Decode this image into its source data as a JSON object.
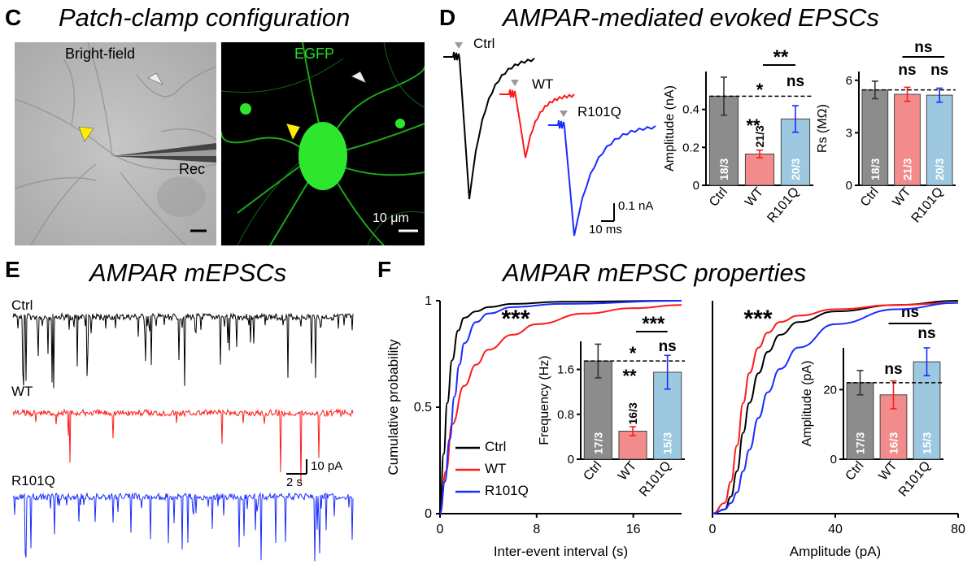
{
  "panels": {
    "C": {
      "letter": "C",
      "title": "Patch-clamp configuration",
      "brightfield_label": "Bright-field",
      "egfp_label": "EGFP",
      "rec_label": "Rec",
      "scale_label": "10 μm"
    },
    "D": {
      "letter": "D",
      "title": "AMPAR-mediated evoked EPSCs",
      "trace_labels": [
        "Ctrl",
        "WT",
        "R101Q"
      ],
      "scale_y": "0.1 nA",
      "scale_x": "10 ms"
    },
    "E": {
      "letter": "E",
      "title": "AMPAR mEPSCs",
      "trace_labels": [
        "Ctrl",
        "WT",
        "R101Q"
      ],
      "scale_y": "10 pA",
      "scale_x": "2 s"
    },
    "F": {
      "letter": "F",
      "title": "AMPAR mEPSC properties",
      "legend": [
        "Ctrl",
        "WT",
        "R101Q"
      ]
    }
  },
  "colors": {
    "ctrl": "#000000",
    "wt": "#ff1a1a",
    "r101q": "#1a2cff",
    "bar_ctrl": "#8c8c8c",
    "bar_wt": "#f28c8c",
    "bar_r101q": "#9cc8e0",
    "egfp": "#22e022"
  },
  "chart_data": [
    {
      "id": "D-amplitude",
      "type": "bar",
      "categories": [
        "Ctrl",
        "WT",
        "R101Q"
      ],
      "values": [
        0.47,
        0.165,
        0.35
      ],
      "errors": [
        0.1,
        0.02,
        0.07
      ],
      "n_labels": [
        "18/3",
        "21/3",
        "20/3"
      ],
      "ylabel": "Amplitude (nA)",
      "ylim": [
        0,
        0.6
      ],
      "yticks": [
        "0",
        "0.2",
        "0.4"
      ],
      "significance": [
        "**",
        "*",
        "**",
        "ns"
      ]
    },
    {
      "id": "D-rs",
      "type": "bar",
      "categories": [
        "Ctrl",
        "WT",
        "R101Q"
      ],
      "values": [
        5.45,
        5.2,
        5.15
      ],
      "errors": [
        0.5,
        0.4,
        0.4
      ],
      "n_labels": [
        "18/3",
        "21/3",
        "20/3"
      ],
      "ylabel": "Rs (MΩ)",
      "ylim": [
        0,
        6.5
      ],
      "yticks": [
        "0",
        "3",
        "6"
      ],
      "significance": [
        "ns",
        "ns",
        "ns"
      ]
    },
    {
      "id": "F-frequency",
      "type": "bar",
      "categories": [
        "Ctrl",
        "WT",
        "R101Q"
      ],
      "values": [
        1.75,
        0.5,
        1.55
      ],
      "errors": [
        0.3,
        0.08,
        0.3
      ],
      "n_labels": [
        "17/3",
        "16/3",
        "15/3"
      ],
      "ylabel": "Frequency (Hz)",
      "ylim": [
        0,
        2.1
      ],
      "yticks": [
        "0",
        "0.8",
        "1.6"
      ],
      "significance": [
        "***",
        "*",
        "**",
        "ns"
      ]
    },
    {
      "id": "F-amplitude",
      "type": "bar",
      "categories": [
        "Ctrl",
        "WT",
        "R101Q"
      ],
      "values": [
        22,
        18.5,
        28
      ],
      "errors": [
        3.5,
        4,
        4
      ],
      "n_labels": [
        "17/3",
        "16/3",
        "15/3"
      ],
      "ylabel": "Amplitude (pA)",
      "ylim": [
        0,
        32
      ],
      "yticks": [
        "0",
        "20"
      ],
      "significance": [
        "ns",
        "ns",
        "ns"
      ]
    },
    {
      "id": "F-iei-cdf",
      "type": "line",
      "xlabel": "Inter-event interval (s)",
      "ylabel": "Cumulative probability",
      "xlim": [
        0,
        20
      ],
      "ylim": [
        0,
        1
      ],
      "xticks": [
        "0",
        "8",
        "16"
      ],
      "yticks": [
        "0",
        "0.5",
        "1"
      ],
      "significance": "***",
      "series": [
        {
          "name": "Ctrl",
          "x": [
            0,
            0.3,
            0.6,
            1,
            1.5,
            2,
            3,
            4,
            6,
            10,
            20
          ],
          "y": [
            0,
            0.28,
            0.52,
            0.72,
            0.86,
            0.92,
            0.95,
            0.97,
            0.985,
            0.995,
            1
          ]
        },
        {
          "name": "WT",
          "x": [
            0,
            0.5,
            1,
            2,
            3,
            4,
            6,
            8,
            12,
            16,
            20
          ],
          "y": [
            0,
            0.2,
            0.42,
            0.6,
            0.7,
            0.77,
            0.84,
            0.89,
            0.94,
            0.965,
            0.98
          ]
        },
        {
          "name": "R101Q",
          "x": [
            0,
            0.4,
            0.8,
            1.2,
            1.6,
            2,
            3,
            4,
            6,
            10,
            20
          ],
          "y": [
            0,
            0.15,
            0.35,
            0.55,
            0.7,
            0.8,
            0.9,
            0.94,
            0.97,
            0.985,
            1
          ]
        }
      ]
    },
    {
      "id": "F-amp-cdf",
      "type": "line",
      "xlabel": "Amplitude (pA)",
      "xlim": [
        0,
        80
      ],
      "ylim": [
        0,
        1
      ],
      "xticks": [
        "0",
        "40",
        "80"
      ],
      "significance": "***",
      "series": [
        {
          "name": "Ctrl",
          "x": [
            0,
            4,
            6,
            8,
            10,
            12,
            15,
            18,
            22,
            28,
            40,
            60,
            80
          ],
          "y": [
            0,
            0.02,
            0.08,
            0.2,
            0.38,
            0.52,
            0.66,
            0.76,
            0.84,
            0.9,
            0.95,
            0.98,
            1
          ]
        },
        {
          "name": "WT",
          "x": [
            0,
            4,
            6,
            8,
            10,
            12,
            15,
            18,
            22,
            28,
            40,
            60,
            80
          ],
          "y": [
            0,
            0.05,
            0.15,
            0.32,
            0.52,
            0.66,
            0.78,
            0.85,
            0.9,
            0.93,
            0.96,
            0.98,
            0.99
          ]
        },
        {
          "name": "R101Q",
          "x": [
            0,
            4,
            6,
            8,
            10,
            12,
            15,
            18,
            22,
            28,
            40,
            60,
            80
          ],
          "y": [
            0,
            0.02,
            0.05,
            0.1,
            0.2,
            0.3,
            0.45,
            0.57,
            0.68,
            0.78,
            0.89,
            0.96,
            0.99
          ]
        }
      ]
    }
  ]
}
